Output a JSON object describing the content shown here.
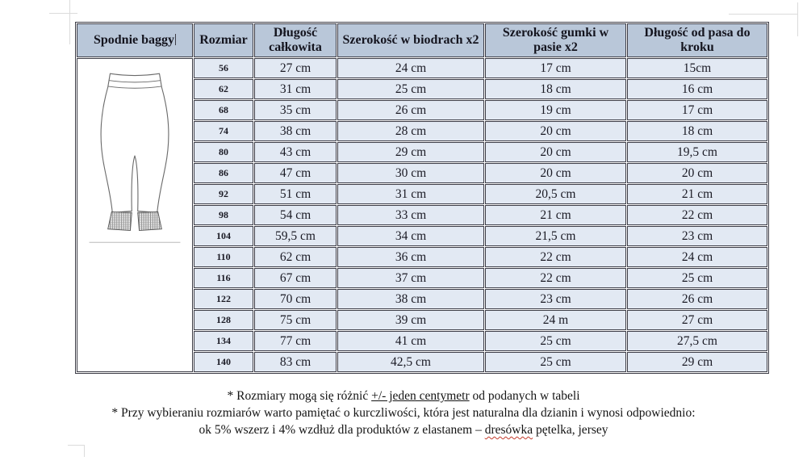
{
  "document": {
    "product_title": "Spodnie baggy",
    "table": {
      "headers": {
        "size": "Rozmiar",
        "total_length": "Długość całkowita",
        "hip_width": "Szerokość w biodrach x2",
        "waist_elastic": "Szerokość gumki w pasie x2",
        "waist_to_crotch": "Długość od pasa do kroku"
      },
      "rows": [
        {
          "size": "56",
          "total_length": "27 cm",
          "hip_width": "24 cm",
          "waist_elastic": "17 cm",
          "waist_to_crotch": "15cm"
        },
        {
          "size": "62",
          "total_length": "31 cm",
          "hip_width": "25 cm",
          "waist_elastic": "18 cm",
          "waist_to_crotch": "16 cm"
        },
        {
          "size": "68",
          "total_length": "35 cm",
          "hip_width": "26 cm",
          "waist_elastic": "19 cm",
          "waist_to_crotch": "17 cm"
        },
        {
          "size": "74",
          "total_length": "38 cm",
          "hip_width": "28 cm",
          "waist_elastic": "20 cm",
          "waist_to_crotch": "18 cm"
        },
        {
          "size": "80",
          "total_length": "43 cm",
          "hip_width": "29 cm",
          "waist_elastic": "20 cm",
          "waist_to_crotch": "19,5 cm"
        },
        {
          "size": "86",
          "total_length": "47 cm",
          "hip_width": "30 cm",
          "waist_elastic": "20 cm",
          "waist_to_crotch": "20 cm"
        },
        {
          "size": "92",
          "total_length": "51 cm",
          "hip_width": "31 cm",
          "waist_elastic": "20,5 cm",
          "waist_to_crotch": "21 cm"
        },
        {
          "size": "98",
          "total_length": "54 cm",
          "hip_width": "33 cm",
          "waist_elastic": "21 cm",
          "waist_to_crotch": "22 cm"
        },
        {
          "size": "104",
          "total_length": "59,5 cm",
          "hip_width": "34 cm",
          "waist_elastic": "21,5 cm",
          "waist_to_crotch": "23 cm"
        },
        {
          "size": "110",
          "total_length": "62 cm",
          "hip_width": "36 cm",
          "waist_elastic": "22 cm",
          "waist_to_crotch": "24 cm"
        },
        {
          "size": "116",
          "total_length": "67 cm",
          "hip_width": "37 cm",
          "waist_elastic": "22 cm",
          "waist_to_crotch": "25 cm"
        },
        {
          "size": "122",
          "total_length": "70 cm",
          "hip_width": "38 cm",
          "waist_elastic": "23 cm",
          "waist_to_crotch": "26 cm"
        },
        {
          "size": "128",
          "total_length": "75 cm",
          "hip_width": "39 cm",
          "waist_elastic": "24 m",
          "waist_to_crotch": "27 cm"
        },
        {
          "size": "134",
          "total_length": "77 cm",
          "hip_width": "41 cm",
          "waist_elastic": "25 cm",
          "waist_to_crotch": "27,5 cm"
        },
        {
          "size": "140",
          "total_length": "83 cm",
          "hip_width": "42,5 cm",
          "waist_elastic": "25 cm",
          "waist_to_crotch": "29 cm"
        }
      ]
    },
    "footnotes": {
      "line1_prefix": "* Rozmiary mogą się różnić ",
      "line1_underlined": "+/- jeden centymetr",
      "line1_suffix": " od podanych w tabeli",
      "line2": "* Przy wybieraniu rozmiarów warto pamiętać o kurczliwości, która jest naturalna dla dzianin i wynosi odpowiednio:",
      "line3_prefix": "ok 5% wszerz i 4% wzdłuż dla produktów z elastanem – ",
      "line3_spellchecked_word": "dresówka",
      "line3_suffix": " pętelka, jersey"
    },
    "colors": {
      "header_bg": "#b9c7d9",
      "row_bg": "#e2e9f3",
      "border": "#3c3c46",
      "spellcheck_underline": "#c43c2c"
    }
  }
}
